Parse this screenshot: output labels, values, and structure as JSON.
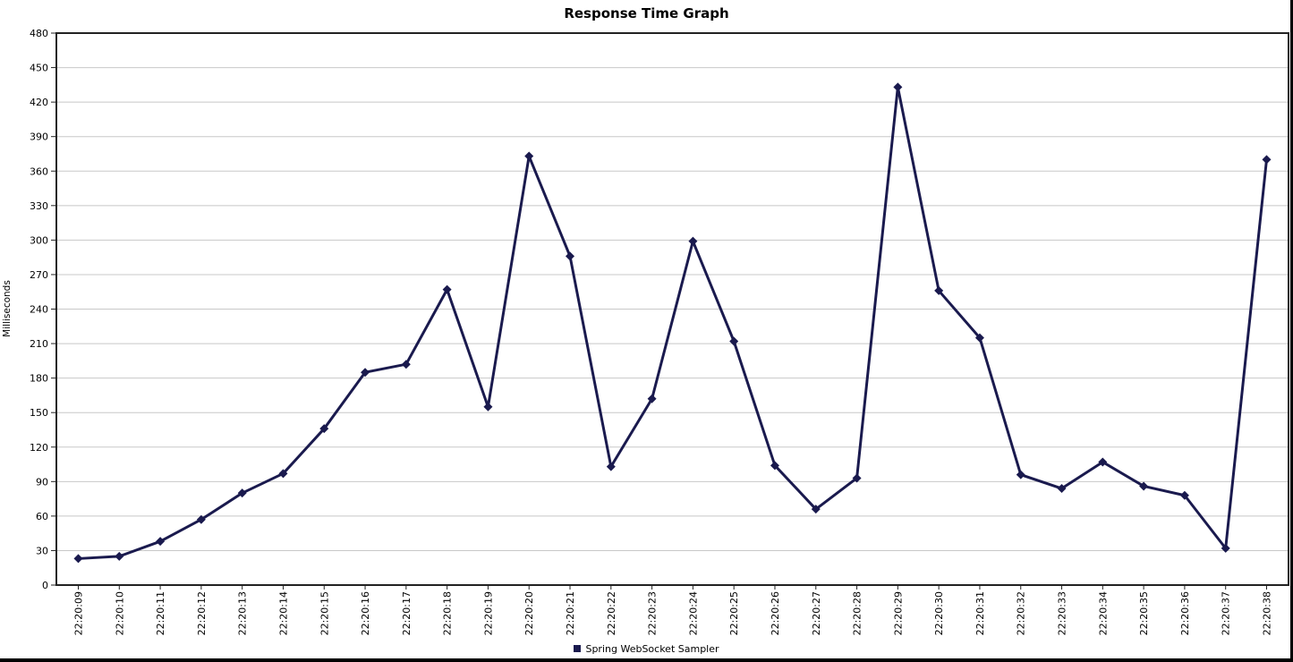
{
  "chart_data": {
    "type": "line",
    "title": "Response Time Graph",
    "ylabel": "Milliseconds",
    "xlabel": "",
    "ylim": [
      0,
      480
    ],
    "ytick_step": 30,
    "grid": "horizontal-only",
    "legend_position": "bottom-center",
    "x_label_rotation": -90,
    "categories": [
      "22:20:09",
      "22:20:10",
      "22:20:11",
      "22:20:12",
      "22:20:13",
      "22:20:14",
      "22:20:15",
      "22:20:16",
      "22:20:17",
      "22:20:18",
      "22:20:19",
      "22:20:20",
      "22:20:21",
      "22:20:22",
      "22:20:23",
      "22:20:24",
      "22:20:25",
      "22:20:26",
      "22:20:27",
      "22:20:28",
      "22:20:29",
      "22:20:30",
      "22:20:31",
      "22:20:32",
      "22:20:33",
      "22:20:34",
      "22:20:35",
      "22:20:36",
      "22:20:37",
      "22:20:38"
    ],
    "series": [
      {
        "name": "Spring WebSocket Sampler",
        "marker": "diamond",
        "values": [
          23,
          25,
          38,
          57,
          80,
          97,
          136,
          185,
          192,
          257,
          155,
          373,
          286,
          103,
          162,
          299,
          212,
          104,
          66,
          93,
          433,
          256,
          215,
          96,
          84,
          107,
          86,
          78,
          32,
          370
        ]
      }
    ]
  },
  "colors": {
    "series": "#1a1a4e",
    "grid": "#c8c8c8",
    "plot_border": "#222222",
    "tick": "#222222",
    "text": "#000000",
    "background": "#ffffff",
    "window_edge": "#000000"
  }
}
